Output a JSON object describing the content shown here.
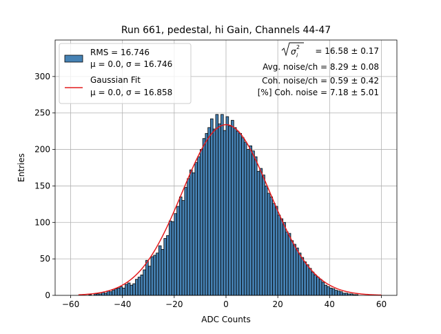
{
  "chart_data": {
    "type": "bar",
    "title": "Run 661, pedestal, hi Gain, Channels 44-47",
    "xlabel": "ADC Counts",
    "ylabel": "Entries",
    "xlim": [
      -66,
      66
    ],
    "ylim": [
      0,
      350
    ],
    "xticks": [
      -60,
      -40,
      -20,
      0,
      20,
      40,
      60
    ],
    "yticks": [
      0,
      50,
      100,
      150,
      200,
      250,
      300
    ],
    "xtick_labels": [
      "−60",
      "−40",
      "−20",
      "0",
      "20",
      "40",
      "60"
    ],
    "ytick_labels": [
      "0",
      "50",
      "100",
      "150",
      "200",
      "250",
      "300"
    ],
    "grid": true,
    "bin_start": -57,
    "bin_width": 1,
    "values": [
      0,
      0,
      0,
      0,
      1,
      0,
      2,
      2,
      2,
      4,
      3,
      6,
      5,
      7,
      9,
      10,
      12,
      10,
      15,
      17,
      14,
      16,
      22,
      25,
      28,
      35,
      48,
      40,
      53,
      55,
      58,
      68,
      63,
      78,
      82,
      102,
      101,
      112,
      122,
      135,
      130,
      148,
      160,
      172,
      168,
      182,
      190,
      200,
      215,
      222,
      230,
      242,
      228,
      248,
      235,
      248,
      226,
      245,
      232,
      240,
      230,
      225,
      222,
      216,
      210,
      200,
      205,
      198,
      190,
      170,
      174,
      165,
      150,
      140,
      135,
      126,
      122,
      110,
      105,
      100,
      87,
      85,
      75,
      70,
      65,
      58,
      52,
      46,
      42,
      37,
      32,
      28,
      25,
      22,
      18,
      14,
      12,
      10,
      9,
      7,
      6,
      5,
      3,
      3,
      2,
      2,
      1,
      1,
      0,
      0,
      0,
      0,
      0,
      0,
      0,
      0,
      0,
      0
    ],
    "series": [
      {
        "name": "RMS = 16.746",
        "sub": "μ = 0.0, σ = 16.746",
        "type": "histogram",
        "color": "#4682b4"
      },
      {
        "name": "Gaussian Fit",
        "sub": "μ = 0.0, σ = 16.858",
        "type": "line",
        "color": "#e41a1c",
        "mu": 0.0,
        "sigma": 16.858,
        "amplitude": 234,
        "range": [
          -57,
          60
        ]
      }
    ],
    "legend_position": "upper-left",
    "annotations": {
      "line1_value": " = 16.58 ± 0.17",
      "line2": "Avg. noise/ch = 8.29 ± 0.08",
      "line3": "Coh. noise/ch = 0.59 ± 0.42",
      "line4": "[%] Coh. noise = 7.18 ± 5.01"
    }
  }
}
